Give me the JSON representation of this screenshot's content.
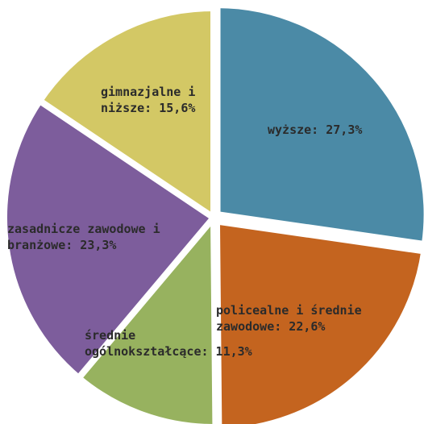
{
  "chart_data": {
    "type": "pie",
    "title": "",
    "start_angle_deg": 0,
    "direction": "clockwise",
    "slices": [
      {
        "name": "wyższe",
        "value": 27.3,
        "value_label": "27,3%",
        "label_lines": [
          "wyższe: 27,3%"
        ],
        "color": "#4b8aa6"
      },
      {
        "name": "policealne i średnie zawodowe",
        "value": 22.6,
        "value_label": "22,6%",
        "label_lines": [
          "policealne i średnie",
          "zawodowe: 22,6%"
        ],
        "color": "#c4641f"
      },
      {
        "name": "średnie ogólnokształcące",
        "value": 11.3,
        "value_label": "11,3%",
        "label_lines": [
          "średnie",
          "ogólnokształcące: 11,3%"
        ],
        "color": "#97b25f"
      },
      {
        "name": "zasadnicze zawodowe i branżowe",
        "value": 23.3,
        "value_label": "23,3%",
        "label_lines": [
          "zasadnicze zawodowe i",
          "branżowe: 23,3%"
        ],
        "color": "#7d5d9c"
      },
      {
        "name": "gimnazjalne i niższe",
        "value": 15.6,
        "value_label": "15,6%",
        "label_lines": [
          "gimnazjalne i",
          "niższe: 15,6%"
        ],
        "color": "#d3c865"
      }
    ]
  }
}
